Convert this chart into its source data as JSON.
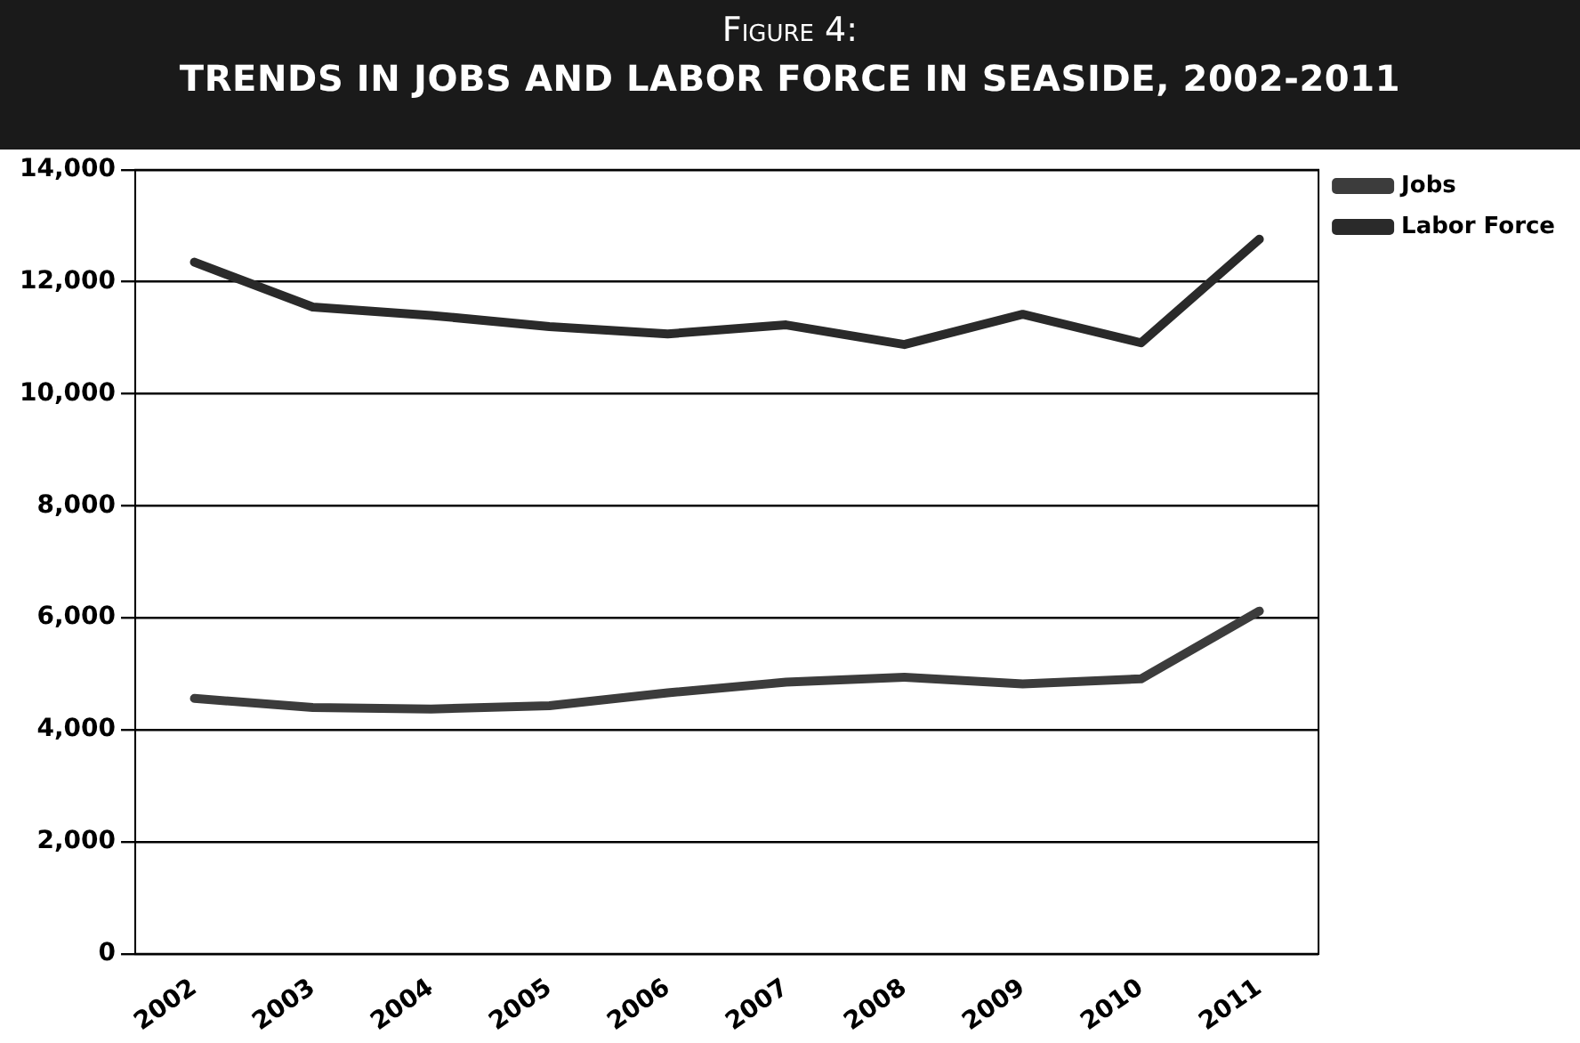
{
  "chart_data": {
    "type": "line",
    "title": "Figure 4:",
    "subtitle": "TRENDS IN JOBS AND LABOR FORCE IN SEASIDE, 2002-2011",
    "categories": [
      "2002",
      "2003",
      "2004",
      "2005",
      "2006",
      "2007",
      "2008",
      "2009",
      "2010",
      "2011"
    ],
    "series": [
      {
        "name": "Jobs",
        "color": "#3c3c3c",
        "values": [
          4560,
          4400,
          4370,
          4430,
          4660,
          4850,
          4940,
          4820,
          4910,
          6120
        ]
      },
      {
        "name": "Labor Force",
        "color": "#2a2a2a",
        "values": [
          12350,
          11550,
          11400,
          11200,
          11070,
          11230,
          10880,
          11420,
          10910,
          12760
        ]
      }
    ],
    "ylim": [
      0,
      14000
    ],
    "yticks": [
      0,
      {
        "value": 2000,
        "label": "2,000"
      },
      {
        "value": 4000,
        "label": "4,000"
      },
      {
        "value": 6000,
        "label": "6,000"
      },
      {
        "value": 8000,
        "label": "8,000"
      },
      {
        "value": 10000,
        "label": "10,000"
      },
      {
        "value": 12000,
        "label": "12,000"
      },
      {
        "value": 14000,
        "label": "14,000"
      }
    ],
    "grid": "y",
    "legend": "right",
    "marker": "none",
    "line_style": "solid"
  }
}
